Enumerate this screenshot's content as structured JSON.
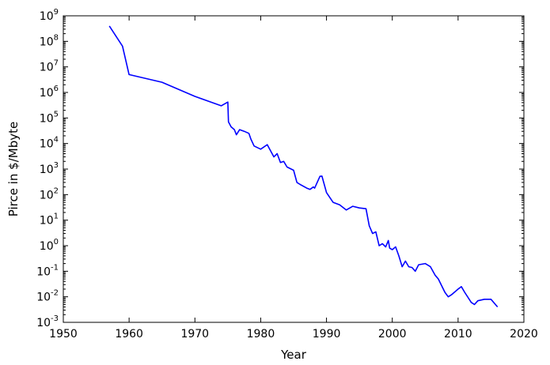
{
  "chart_data": {
    "type": "line",
    "title": "",
    "xlabel": "Year",
    "ylabel": "Pirce in $/Mbyte",
    "xlim": [
      1950,
      2020
    ],
    "ylim": [
      0.001,
      1000000000
    ],
    "yscale": "log",
    "grid": false,
    "x_ticks": [
      1950,
      1960,
      1970,
      1980,
      1990,
      2000,
      2010,
      2020
    ],
    "y_tick_base": "10",
    "y_tick_exponents": [
      "-3",
      "-2",
      "-1",
      "0",
      "1",
      "2",
      "3",
      "4",
      "5",
      "6",
      "7",
      "8",
      "9"
    ],
    "series": [
      {
        "color": "#0000ff",
        "x": [
          1957,
          1959,
          1960,
          1965,
          1970,
          1974,
          1975,
          1975.1,
          1975.5,
          1976,
          1976.3,
          1976.8,
          1977.5,
          1978.2,
          1978.5,
          1979,
          1980,
          1981,
          1982,
          1982.5,
          1983,
          1983.5,
          1984,
          1985,
          1985.5,
          1986,
          1987,
          1987.5,
          1988,
          1988.2,
          1989,
          1989.3,
          1990,
          1991,
          1992,
          1993,
          1994,
          1995,
          1996,
          1996.5,
          1997,
          1997.5,
          1998,
          1998.5,
          1999,
          1999.4,
          1999.6,
          2000,
          2000.5,
          2001,
          2001.5,
          2002,
          2002.5,
          2003,
          2003.5,
          2004,
          2005,
          2005.8,
          2006.5,
          2007,
          2008,
          2008.5,
          2009,
          2010,
          2010.5,
          2011,
          2012,
          2012.5,
          2013,
          2014,
          2015,
          2016
        ],
        "y": [
          400000000,
          65000000,
          5000000,
          2500000,
          700000,
          300000,
          420000,
          70000,
          45000,
          35000,
          22000,
          35000,
          30000,
          25000,
          15000,
          8000,
          6000,
          9000,
          3000,
          4000,
          1800,
          2000,
          1200,
          900,
          300,
          250,
          180,
          160,
          200,
          180,
          520,
          530,
          120,
          50,
          40,
          25,
          35,
          30,
          28,
          6,
          3,
          3.5,
          1,
          1.2,
          0.9,
          1.6,
          0.8,
          0.7,
          0.9,
          0.4,
          0.15,
          0.25,
          0.15,
          0.14,
          0.1,
          0.18,
          0.2,
          0.15,
          0.07,
          0.05,
          0.015,
          0.01,
          0.012,
          0.02,
          0.025,
          0.015,
          0.006,
          0.005,
          0.007,
          0.008,
          0.008,
          0.004
        ]
      }
    ]
  }
}
